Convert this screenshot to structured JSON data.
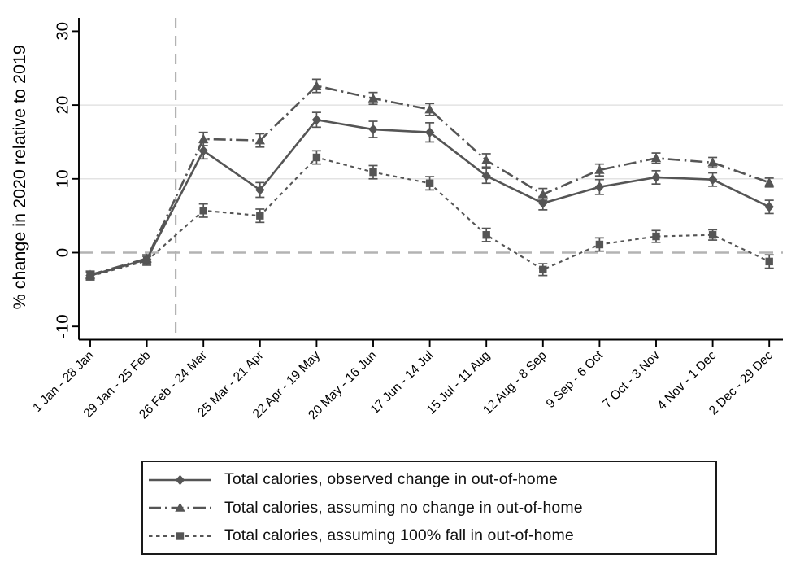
{
  "chart_data": {
    "type": "line",
    "title": "",
    "xlabel": "",
    "ylabel": "% change in 2020 relative to 2019",
    "categories": [
      "1 Jan - 28 Jan",
      "29 Jan - 25 Feb",
      "26 Feb - 24 Mar",
      "25 Mar - 21 Apr",
      "22 Apr - 19 May",
      "20 May - 16 Jun",
      "17 Jun - 14 Jul",
      "15 Jul - 11 Aug",
      "12 Aug - 8 Sep",
      "9 Sep - 6 Oct",
      "7 Oct - 3 Nov",
      "4 Nov - 1 Dec",
      "2 Dec - 29 Dec"
    ],
    "y_axis": {
      "ticks": [
        -10,
        0,
        10,
        20,
        30
      ],
      "range": [
        -11.8,
        31.8
      ],
      "gridlines": [
        10,
        20
      ]
    },
    "reference_lines": {
      "horizontal_y": 0,
      "vertical_at_category_index": 1.51
    },
    "legend_position": "bottom",
    "series": [
      {
        "name": "Total calories, observed change in out-of-home",
        "marker": "diamond",
        "line_style": "solid",
        "values": [
          -3.1,
          -0.9,
          13.8,
          8.5,
          18.0,
          16.7,
          16.3,
          10.4,
          6.7,
          8.9,
          10.2,
          9.9,
          6.2
        ],
        "errors": [
          0.5,
          0.6,
          1.1,
          1.0,
          1.0,
          1.1,
          1.3,
          1.0,
          0.9,
          1.0,
          0.9,
          0.9,
          0.9
        ]
      },
      {
        "name": "Total calories, assuming no change in out-of-home",
        "marker": "triangle",
        "line_style": "dash-dot",
        "values": [
          -3.0,
          -0.8,
          15.4,
          15.2,
          22.6,
          20.9,
          19.4,
          12.5,
          7.9,
          11.2,
          12.8,
          12.2,
          9.5
        ],
        "errors": [
          0.5,
          0.5,
          0.9,
          0.9,
          0.9,
          0.8,
          0.8,
          0.9,
          0.8,
          0.8,
          0.7,
          0.7,
          0.6
        ]
      },
      {
        "name": "Total calories, assuming 100% fall in out-of-home",
        "marker": "square",
        "line_style": "dashed",
        "values": [
          -3.2,
          -1.1,
          5.7,
          5.0,
          12.9,
          10.9,
          9.4,
          2.4,
          -2.3,
          1.1,
          2.2,
          2.4,
          -1.2
        ],
        "errors": [
          0.5,
          0.6,
          0.9,
          0.9,
          0.9,
          0.9,
          0.9,
          0.9,
          0.8,
          0.9,
          0.8,
          0.7,
          0.9
        ]
      }
    ],
    "colors": {
      "series": "#555555",
      "grid": "#e3e3e3",
      "reference": "#b3b3b3",
      "axis": "#000000",
      "text": "#000000"
    }
  }
}
